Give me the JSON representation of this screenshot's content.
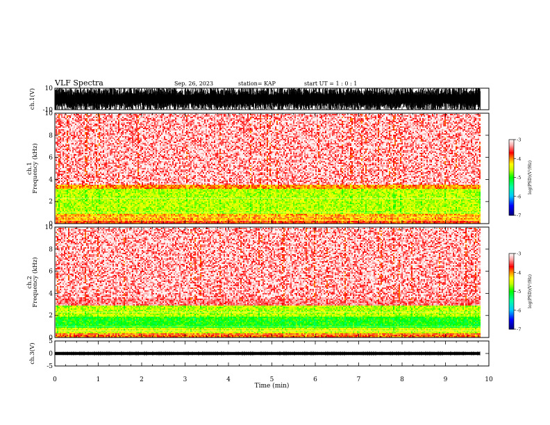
{
  "header": {
    "title": "VLF Spectra",
    "date": "Sep. 26, 2023",
    "station": "station= KAP",
    "start": "start  UT =   1 : 0  : 1"
  },
  "chart_data": [
    {
      "type": "line",
      "name": "ch1-waveform",
      "ylabel": "ch.1(V)",
      "ylim": [
        -10,
        10
      ],
      "yticks": [
        "10",
        "-10"
      ],
      "xlim": [
        0,
        10
      ],
      "data_end_min": 9.8,
      "description_values": {
        "typical_low": -10,
        "typical_high": 10
      }
    },
    {
      "type": "heatmap",
      "name": "ch1-spectrogram",
      "ylabel": "ch.1\nFrequency  (kHz)",
      "ylim": [
        0,
        10
      ],
      "yticks": [
        "0",
        "2",
        "4",
        "6",
        "8",
        "10"
      ],
      "xlim": [
        0,
        10
      ],
      "data_end_min": 9.8,
      "bands": [
        {
          "f0": 0.0,
          "f1": 0.35,
          "level": -3.8
        },
        {
          "f0": 0.35,
          "f1": 1.0,
          "level": -4.1
        },
        {
          "f0": 1.0,
          "f1": 3.2,
          "level": -4.6
        },
        {
          "f0": 3.2,
          "f1": 3.6,
          "level": -4.0
        },
        {
          "f0": 3.6,
          "f1": 10.0,
          "level": -3.4
        }
      ],
      "colorbar": {
        "min": -7,
        "max": -3,
        "ticks": [
          "-3",
          "-4",
          "-5",
          "-6",
          "-7"
        ],
        "label": "log(PSD)(V²/Hz)"
      }
    },
    {
      "type": "heatmap",
      "name": "ch2-spectrogram",
      "ylabel": "ch.2\nFrequency  (kHz)",
      "ylim": [
        0,
        10
      ],
      "yticks": [
        "0",
        "2",
        "4",
        "6",
        "8",
        "10"
      ],
      "xlim": [
        0,
        10
      ],
      "data_end_min": 9.8,
      "bands": [
        {
          "f0": 0.0,
          "f1": 0.5,
          "level": -3.9
        },
        {
          "f0": 0.5,
          "f1": 1.0,
          "level": -4.5
        },
        {
          "f0": 1.0,
          "f1": 2.0,
          "level": -5.0
        },
        {
          "f0": 2.0,
          "f1": 3.0,
          "level": -4.6
        },
        {
          "f0": 3.0,
          "f1": 10.0,
          "level": -3.4
        }
      ],
      "colorbar": {
        "min": -7,
        "max": -3,
        "ticks": [
          "-3",
          "-4",
          "-5",
          "-6",
          "-7"
        ],
        "label": "log(PSD)(V²/Hz)"
      }
    },
    {
      "type": "line",
      "name": "ch3-waveform",
      "ylabel": "ch.3(V)",
      "ylim": [
        -5,
        5
      ],
      "yticks": [
        "5",
        "0",
        "-5"
      ],
      "xlim": [
        0,
        10
      ],
      "data_end_min": 9.8,
      "description_values": {
        "typical_low": -0.6,
        "typical_high": 0.6
      }
    }
  ],
  "xaxis": {
    "label": "Time  (min)",
    "ticks": [
      "0",
      "1",
      "2",
      "3",
      "4",
      "5",
      "6",
      "7",
      "8",
      "9",
      "10"
    ]
  },
  "colors": {
    "palette": [
      "#000080",
      "#0000ff",
      "#00c8ff",
      "#00ff00",
      "#ffff00",
      "#ff8000",
      "#ff0000",
      "#ffc0c0",
      "#ffffff"
    ]
  }
}
